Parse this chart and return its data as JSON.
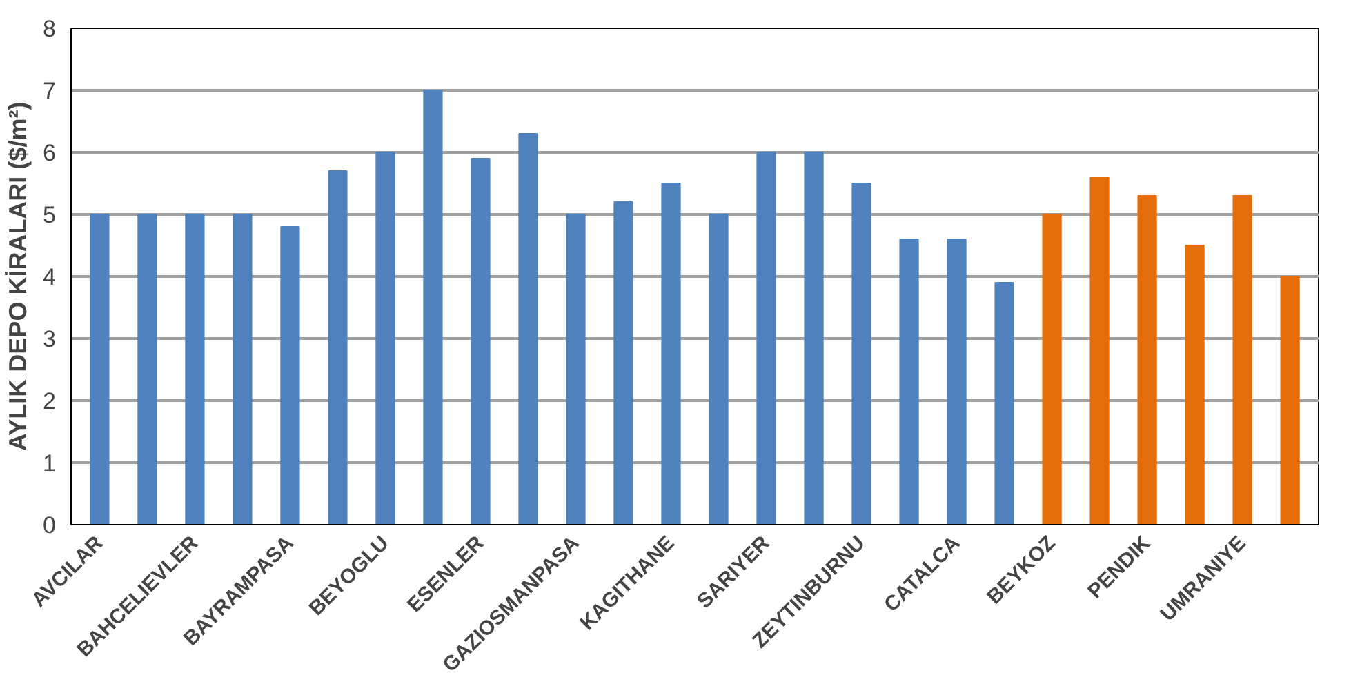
{
  "chart_data": {
    "type": "bar",
    "ylabel": "AYLIK DEPO KİRALARI ($/m²)",
    "categories": [
      "AVCILAR",
      null,
      "BAHCELIEVLER",
      null,
      "BAYRAMPASA",
      null,
      "BEYOGLU",
      null,
      "ESENLER",
      null,
      "GAZIOSMANPASA",
      null,
      "KAGITHANE",
      null,
      "SARIYER",
      null,
      "ZEYTINBURNU",
      null,
      "CATALCA",
      null,
      "BEYKOZ",
      null,
      "PENDIK",
      null,
      "UMRANIYE",
      null
    ],
    "values": [
      5,
      5,
      5,
      5,
      4.8,
      5.7,
      6,
      7,
      5.9,
      6.3,
      5,
      5.2,
      5.5,
      5,
      6,
      6,
      5.5,
      4.6,
      4.6,
      3.9,
      5,
      5.6,
      5.3,
      4.5,
      5.3,
      4
    ],
    "colors": [
      "#4f81bd",
      "#4f81bd",
      "#4f81bd",
      "#4f81bd",
      "#4f81bd",
      "#4f81bd",
      "#4f81bd",
      "#4f81bd",
      "#4f81bd",
      "#4f81bd",
      "#4f81bd",
      "#4f81bd",
      "#4f81bd",
      "#4f81bd",
      "#4f81bd",
      "#4f81bd",
      "#4f81bd",
      "#4f81bd",
      "#4f81bd",
      "#4f81bd",
      "#e46c0a",
      "#e46c0a",
      "#e46c0a",
      "#e46c0a",
      "#e46c0a",
      "#e46c0a"
    ],
    "ylim": [
      0,
      8
    ],
    "yticks": [
      0,
      1,
      2,
      3,
      4,
      5,
      6,
      7,
      8
    ],
    "grid": "y"
  }
}
